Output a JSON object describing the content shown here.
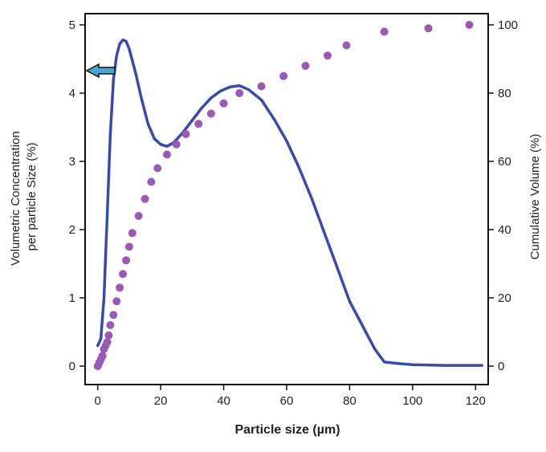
{
  "chart_data": {
    "type": "line",
    "xlabel": "Particle size (µm)",
    "ylabel_left": "Volumetric Concentration per particle Size (%)",
    "ylabel_left_lines": [
      "Volumetric Concentration",
      "per particle Size (%)"
    ],
    "ylabel_right": "Cumulative Volume (%)",
    "xlim": [
      -4,
      124
    ],
    "ylim_left": [
      0,
      5
    ],
    "ylim_right": [
      0,
      100
    ],
    "x_ticks": [
      0,
      20,
      40,
      60,
      80,
      100,
      120
    ],
    "y_left_ticks": [
      0,
      1,
      2,
      3,
      4,
      5
    ],
    "y_right_ticks": [
      0,
      20,
      40,
      60,
      80,
      100
    ],
    "grid": false,
    "legend": "none",
    "annotation": "arrow pointing to left axis",
    "series": [
      {
        "style": "line",
        "axis": "left",
        "color": "#3a4aa8",
        "x": [
          0,
          1,
          2,
          3,
          4,
          5,
          6,
          7,
          8,
          9,
          10,
          12,
          14,
          16,
          18,
          20,
          22,
          24,
          27,
          30,
          33,
          36,
          39,
          42,
          45,
          48,
          52,
          56,
          60,
          64,
          68,
          72,
          76,
          80,
          84,
          88,
          91,
          95,
          100,
          110,
          122
        ],
        "values": [
          0.3,
          0.4,
          1.0,
          2.2,
          3.4,
          4.2,
          4.55,
          4.72,
          4.78,
          4.76,
          4.65,
          4.3,
          3.9,
          3.55,
          3.33,
          3.25,
          3.22,
          3.27,
          3.42,
          3.6,
          3.78,
          3.93,
          4.03,
          4.09,
          4.11,
          4.05,
          3.9,
          3.62,
          3.3,
          2.9,
          2.45,
          1.95,
          1.45,
          0.95,
          0.6,
          0.25,
          0.06,
          0.04,
          0.02,
          0.01,
          0.01
        ]
      },
      {
        "style": "dots",
        "axis": "right",
        "color": "#9b59b6",
        "x": [
          0,
          0.5,
          1,
          1.5,
          2,
          2.5,
          3,
          3.5,
          4,
          5,
          6,
          7,
          8,
          9,
          10,
          11,
          13,
          15,
          17,
          19,
          22,
          25,
          28,
          32,
          36,
          40,
          45,
          52,
          59,
          66,
          73,
          79,
          91,
          105,
          118
        ],
        "values": [
          0,
          1,
          2,
          3,
          5,
          6,
          7,
          9,
          12,
          15,
          19,
          23,
          27,
          31,
          35,
          39,
          44,
          49,
          54,
          58,
          62,
          65,
          68,
          71,
          74,
          77,
          80,
          82,
          85,
          88,
          91,
          94,
          98,
          99,
          100
        ]
      }
    ]
  }
}
